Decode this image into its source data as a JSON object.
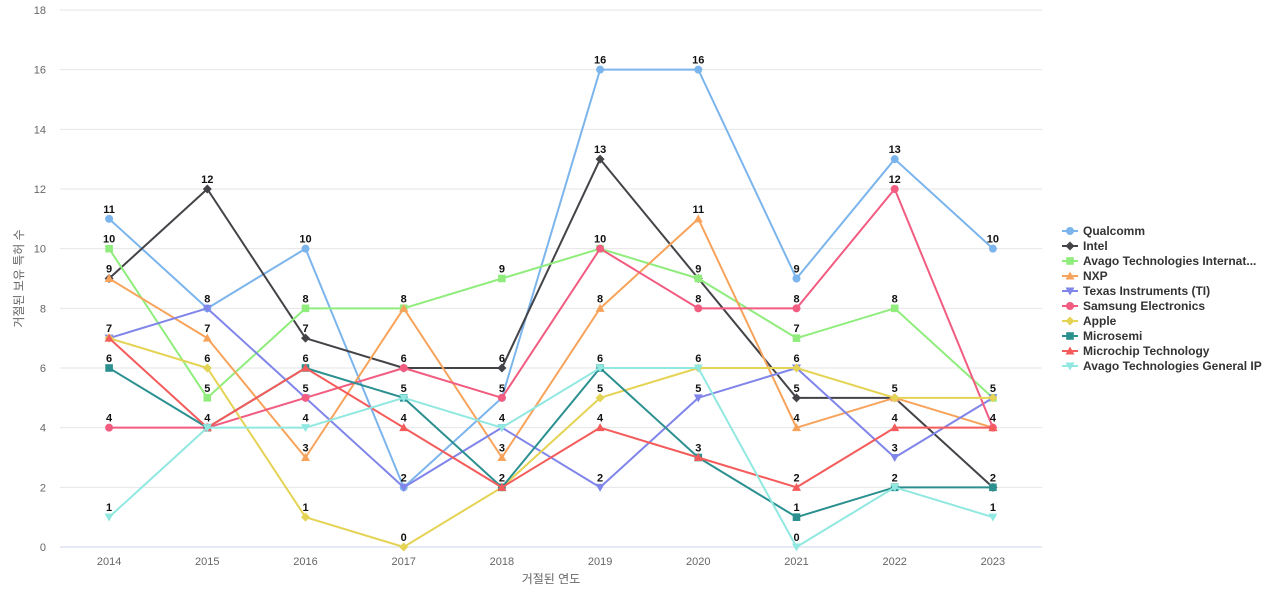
{
  "chart_data": {
    "type": "line",
    "title": "",
    "xlabel": "거절된 연도",
    "ylabel": "거절된 보유 특허 수",
    "x": [
      "2014",
      "2015",
      "2016",
      "2017",
      "2018",
      "2019",
      "2020",
      "2021",
      "2022",
      "2023"
    ],
    "ylim": [
      0,
      18
    ],
    "yticks": [
      0,
      2,
      4,
      6,
      8,
      10,
      12,
      14,
      16,
      18
    ],
    "grid": true,
    "legend_position": "right",
    "series": [
      {
        "name": "Qualcomm",
        "color": "#7cb5ec",
        "marker": "circle",
        "values": [
          11,
          8,
          10,
          2,
          5,
          16,
          16,
          9,
          13,
          10
        ]
      },
      {
        "name": "Intel",
        "color": "#434348",
        "marker": "diamond",
        "values": [
          9,
          12,
          7,
          6,
          6,
          13,
          9,
          5,
          5,
          2
        ]
      },
      {
        "name": "Avago Technologies Internat...",
        "color": "#90ed7d",
        "marker": "square",
        "values": [
          10,
          5,
          8,
          8,
          9,
          10,
          9,
          7,
          8,
          5
        ]
      },
      {
        "name": "NXP",
        "color": "#f7a35c",
        "marker": "triangle",
        "values": [
          9,
          7,
          3,
          8,
          3,
          8,
          11,
          4,
          5,
          4
        ]
      },
      {
        "name": "Texas Instruments (TI)",
        "color": "#8085e9",
        "marker": "triangle-down",
        "values": [
          7,
          8,
          5,
          2,
          4,
          2,
          5,
          6,
          3,
          5
        ]
      },
      {
        "name": "Samsung Electronics",
        "color": "#f15c80",
        "marker": "circle",
        "values": [
          4,
          4,
          5,
          6,
          5,
          10,
          8,
          8,
          12,
          4
        ]
      },
      {
        "name": "Apple",
        "color": "#e4d354",
        "marker": "diamond",
        "values": [
          7,
          6,
          1,
          0,
          2,
          5,
          6,
          6,
          5,
          5
        ]
      },
      {
        "name": "Microsemi",
        "color": "#2b908f",
        "marker": "square",
        "values": [
          6,
          4,
          6,
          5,
          2,
          6,
          3,
          1,
          2,
          2
        ]
      },
      {
        "name": "Microchip Technology",
        "color": "#f45b5b",
        "marker": "triangle",
        "values": [
          7,
          4,
          6,
          4,
          2,
          4,
          3,
          2,
          4,
          4
        ]
      },
      {
        "name": "Avago Technologies General IP",
        "color": "#91e8e1",
        "marker": "triangle-down",
        "values": [
          1,
          4,
          4,
          5,
          4,
          6,
          6,
          0,
          2,
          1
        ]
      }
    ],
    "data_labels": [
      {
        "x": "2014",
        "value": 11
      },
      {
        "x": "2014",
        "value": 10
      },
      {
        "x": "2014",
        "value": 9
      },
      {
        "x": "2014",
        "value": 7
      },
      {
        "x": "2014",
        "value": 6
      },
      {
        "x": "2014",
        "value": 4
      },
      {
        "x": "2014",
        "value": 1
      },
      {
        "x": "2015",
        "value": 12
      },
      {
        "x": "2015",
        "value": 8
      },
      {
        "x": "2015",
        "value": 7
      },
      {
        "x": "2015",
        "value": 6
      },
      {
        "x": "2015",
        "value": 5
      },
      {
        "x": "2015",
        "value": 4
      },
      {
        "x": "2016",
        "value": 10
      },
      {
        "x": "2016",
        "value": 8
      },
      {
        "x": "2016",
        "value": 7
      },
      {
        "x": "2016",
        "value": 6
      },
      {
        "x": "2016",
        "value": 5
      },
      {
        "x": "2016",
        "value": 4
      },
      {
        "x": "2016",
        "value": 3
      },
      {
        "x": "2016",
        "value": 1
      },
      {
        "x": "2017",
        "value": 8
      },
      {
        "x": "2017",
        "value": 6
      },
      {
        "x": "2017",
        "value": 5
      },
      {
        "x": "2017",
        "value": 4
      },
      {
        "x": "2017",
        "value": 2
      },
      {
        "x": "2017",
        "value": 0
      },
      {
        "x": "2018",
        "value": 9
      },
      {
        "x": "2018",
        "value": 6
      },
      {
        "x": "2018",
        "value": 5
      },
      {
        "x": "2018",
        "value": 4
      },
      {
        "x": "2018",
        "value": 3
      },
      {
        "x": "2018",
        "value": 2
      },
      {
        "x": "2019",
        "value": 16
      },
      {
        "x": "2019",
        "value": 13
      },
      {
        "x": "2019",
        "value": 10
      },
      {
        "x": "2019",
        "value": 8
      },
      {
        "x": "2019",
        "value": 6
      },
      {
        "x": "2019",
        "value": 5
      },
      {
        "x": "2019",
        "value": 4
      },
      {
        "x": "2019",
        "value": 2
      },
      {
        "x": "2020",
        "value": 16
      },
      {
        "x": "2020",
        "value": 11
      },
      {
        "x": "2020",
        "value": 9
      },
      {
        "x": "2020",
        "value": 8
      },
      {
        "x": "2020",
        "value": 6
      },
      {
        "x": "2020",
        "value": 5
      },
      {
        "x": "2020",
        "value": 3
      },
      {
        "x": "2021",
        "value": 9
      },
      {
        "x": "2021",
        "value": 8
      },
      {
        "x": "2021",
        "value": 7
      },
      {
        "x": "2021",
        "value": 6
      },
      {
        "x": "2021",
        "value": 5
      },
      {
        "x": "2021",
        "value": 4
      },
      {
        "x": "2021",
        "value": 2
      },
      {
        "x": "2021",
        "value": 1
      },
      {
        "x": "2021",
        "value": 0
      },
      {
        "x": "2022",
        "value": 13
      },
      {
        "x": "2022",
        "value": 12
      },
      {
        "x": "2022",
        "value": 8
      },
      {
        "x": "2022",
        "value": 5
      },
      {
        "x": "2022",
        "value": 4
      },
      {
        "x": "2022",
        "value": 3
      },
      {
        "x": "2022",
        "value": 2
      },
      {
        "x": "2023",
        "value": 10
      },
      {
        "x": "2023",
        "value": 5
      },
      {
        "x": "2023",
        "value": 4
      },
      {
        "x": "2023",
        "value": 2
      },
      {
        "x": "2023",
        "value": 1
      }
    ]
  }
}
